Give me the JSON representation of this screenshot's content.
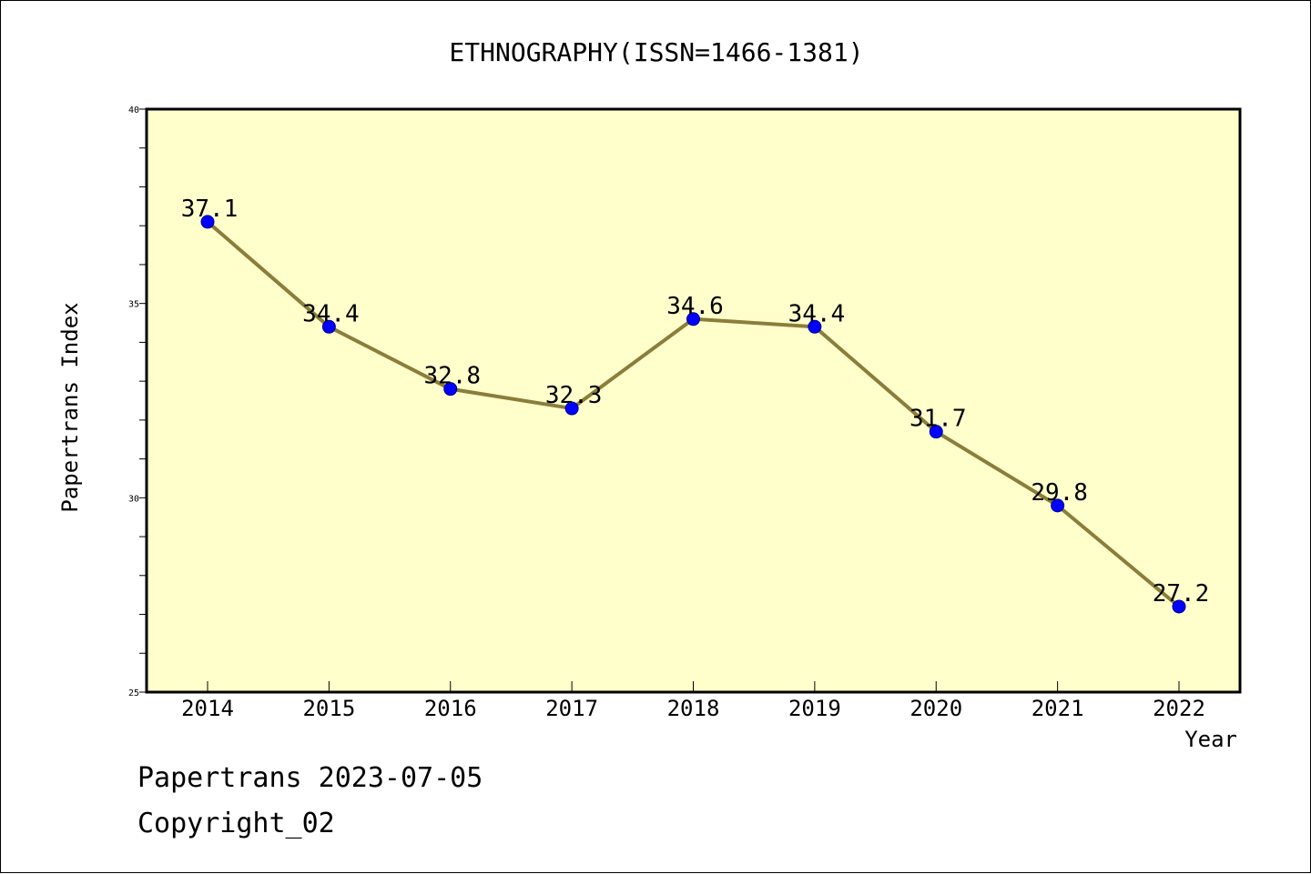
{
  "chart_data": {
    "type": "line",
    "title": "ETHNOGRAPHY(ISSN=1466-1381)",
    "xlabel": "Year",
    "ylabel": "Papertrans Index",
    "categories": [
      "2014",
      "2015",
      "2016",
      "2017",
      "2018",
      "2019",
      "2020",
      "2021",
      "2022"
    ],
    "series": [
      {
        "values": [
          37.1,
          34.4,
          32.8,
          32.3,
          34.6,
          34.4,
          31.7,
          29.8,
          27.2
        ]
      }
    ],
    "data_labels": [
      "37.1",
      "34.4",
      "32.8",
      "32.3",
      "34.6",
      "34.4",
      "31.7",
      "29.8",
      "27.2"
    ],
    "ylim": [
      25,
      40
    ],
    "yticks": [
      "25",
      "30",
      "35",
      "40"
    ],
    "grid": false,
    "legend": "none",
    "colors": {
      "plot_background": "#ffffcc",
      "line": "#8b7d3a",
      "marker": "#0000ff"
    }
  },
  "footer": {
    "line1": "Papertrans 2023-07-05",
    "line2": "Copyright_02"
  }
}
